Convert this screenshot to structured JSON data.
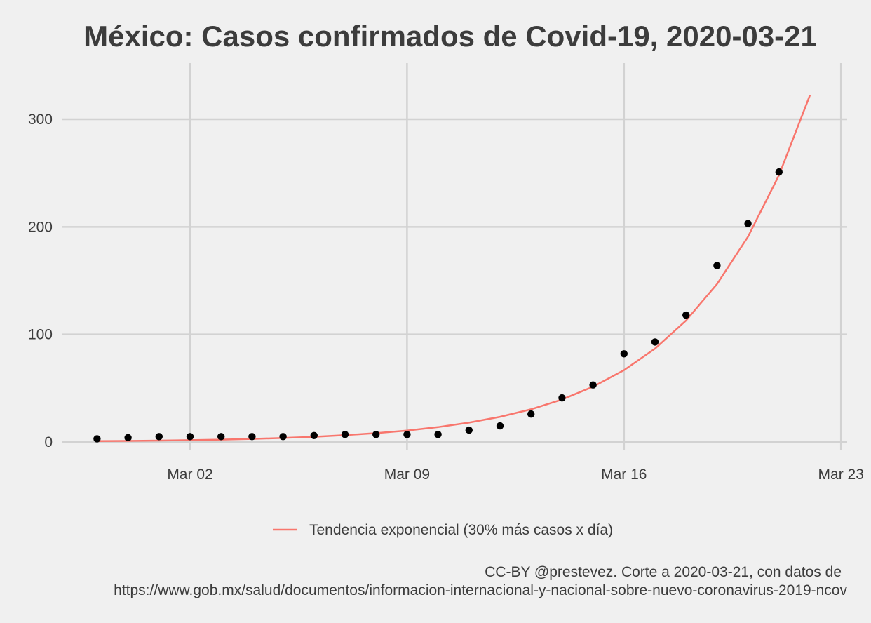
{
  "chart_data": {
    "type": "scatter",
    "title": "México: Casos confirmados de Covid-19, 2020-03-21",
    "xlabel": "",
    "ylabel": "",
    "x_type": "date",
    "xlim": [
      "2020-02-26",
      "2020-03-23"
    ],
    "ylim": [
      -12,
      352
    ],
    "x_ticks": [
      "2020-03-02",
      "2020-03-09",
      "2020-03-16",
      "2020-03-23"
    ],
    "x_tick_labels": [
      "Mar 02",
      "Mar 09",
      "Mar 16",
      "Mar 23"
    ],
    "y_ticks": [
      0,
      100,
      200,
      300
    ],
    "y_tick_labels": [
      "0",
      "100",
      "200",
      "300"
    ],
    "grid": true,
    "legend_position": "bottom",
    "series": [
      {
        "kind": "points",
        "color": "#000000",
        "x": [
          "2020-02-28",
          "2020-02-29",
          "2020-03-01",
          "2020-03-02",
          "2020-03-03",
          "2020-03-04",
          "2020-03-05",
          "2020-03-06",
          "2020-03-07",
          "2020-03-08",
          "2020-03-09",
          "2020-03-10",
          "2020-03-11",
          "2020-03-12",
          "2020-03-13",
          "2020-03-14",
          "2020-03-15",
          "2020-03-16",
          "2020-03-17",
          "2020-03-18",
          "2020-03-19",
          "2020-03-20",
          "2020-03-21"
        ],
        "y": [
          3,
          4,
          5,
          5,
          5,
          5,
          5,
          6,
          7,
          7,
          7,
          7,
          11,
          15,
          26,
          41,
          53,
          82,
          93,
          118,
          164,
          203,
          251
        ]
      },
      {
        "kind": "line",
        "name": "Tendencia exponencial (30% más casos x día)",
        "color": "#f8766d",
        "x": [
          "2020-02-28",
          "2020-02-29",
          "2020-03-01",
          "2020-03-02",
          "2020-03-03",
          "2020-03-04",
          "2020-03-05",
          "2020-03-06",
          "2020-03-07",
          "2020-03-08",
          "2020-03-09",
          "2020-03-10",
          "2020-03-11",
          "2020-03-12",
          "2020-03-13",
          "2020-03-14",
          "2020-03-15",
          "2020-03-16",
          "2020-03-17",
          "2020-03-18",
          "2020-03-19",
          "2020-03-20",
          "2020-03-21",
          "2020-03-22"
        ],
        "y": [
          0.8,
          1.0,
          1.3,
          1.7,
          2.2,
          2.9,
          3.7,
          4.8,
          6.3,
          8.2,
          10.6,
          13.8,
          18.0,
          23.4,
          30.4,
          39.5,
          51.4,
          66.8,
          86.8,
          112.9,
          146.8,
          190.8,
          248.0,
          322.5
        ]
      }
    ],
    "caption": [
      "CC-BY @prestevez. Corte a 2020-03-21, con datos de",
      "https://www.gob.mx/salud/documentos/informacion-internacional-y-nacional-sobre-nuevo-coronavirus-2019-ncov"
    ]
  }
}
